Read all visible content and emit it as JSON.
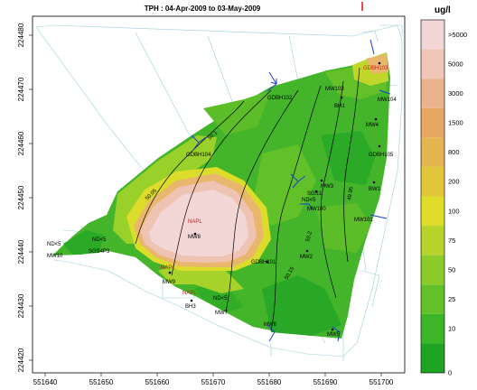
{
  "title": "TPH  : 04-Apr-2009 to 03-May-2009",
  "legend": {
    "title": "ug/l",
    "classes": [
      {
        "label": ">5000",
        "color": "#f3d6d6"
      },
      {
        "label": "5000",
        "color": "#efc6b8"
      },
      {
        "label": "3000",
        "color": "#eab28e"
      },
      {
        "label": "1500",
        "color": "#e6a863"
      },
      {
        "label": "800",
        "color": "#e4b550"
      },
      {
        "label": "200",
        "color": "#e2c63a"
      },
      {
        "label": "100",
        "color": "#dfdd2a"
      },
      {
        "label": "75",
        "color": "#b6d42a"
      },
      {
        "label": "50",
        "color": "#8dcb2a"
      },
      {
        "label": "25",
        "color": "#64c028"
      },
      {
        "label": "10",
        "color": "#3cb526"
      },
      {
        "label": "0",
        "color": "#1ea424"
      }
    ]
  },
  "axes": {
    "x_ticks": [
      "551640",
      "551650",
      "551660",
      "551670",
      "551680",
      "551690",
      "551700"
    ],
    "y_ticks": [
      "224420",
      "224430",
      "224440",
      "224450",
      "224460",
      "224470",
      "224480"
    ]
  },
  "wells": [
    {
      "name": "GDBH103",
      "color": "red"
    },
    {
      "name": "MW103",
      "color": "black"
    },
    {
      "name": "MW104",
      "color": "black"
    },
    {
      "name": "BH1",
      "color": "black"
    },
    {
      "name": "GDBH102",
      "color": "black"
    },
    {
      "name": "MW4",
      "color": "black"
    },
    {
      "name": "GDBH105",
      "color": "black"
    },
    {
      "name": "GDBH104",
      "color": "black"
    },
    {
      "name": "MW3",
      "color": "black"
    },
    {
      "name": "SGS1",
      "color": "black"
    },
    {
      "name": "ND<5",
      "color": "black"
    },
    {
      "name": "MW100",
      "color": "black"
    },
    {
      "name": "BW1",
      "color": "black"
    },
    {
      "name": "MW101",
      "color": "black"
    },
    {
      "name": "NAPL",
      "color": "red"
    },
    {
      "name": "MW8",
      "color": "black"
    },
    {
      "name": "ND<5",
      "color": "black"
    },
    {
      "name": "MW10",
      "color": "black"
    },
    {
      "name": "ND<5",
      "color": "black"
    },
    {
      "name": "SGS4P3",
      "color": "black"
    },
    {
      "name": "MW2",
      "color": "black"
    },
    {
      "name": "GDBH101",
      "color": "black"
    },
    {
      "name": "NAPL",
      "color": "red"
    },
    {
      "name": "MW9",
      "color": "black"
    },
    {
      "name": "NAPL",
      "color": "red"
    },
    {
      "name": "BH3",
      "color": "black"
    },
    {
      "name": "ND<5",
      "color": "black"
    },
    {
      "name": "MW7",
      "color": "black"
    },
    {
      "name": "MW6",
      "color": "black"
    },
    {
      "name": "MW5",
      "color": "black"
    }
  ],
  "contour_labels": [
    "50.05",
    "50.1",
    "50.15",
    "50.2",
    "49.95"
  ]
}
